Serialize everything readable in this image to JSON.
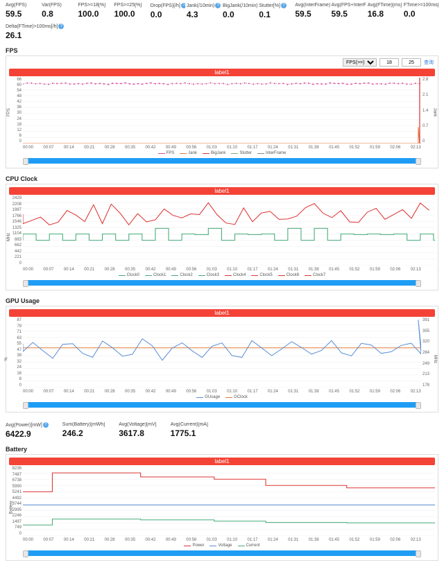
{
  "metrics_top": [
    {
      "label": "Avg(FPS)",
      "value": "59.5",
      "help": false
    },
    {
      "label": "Var(FPS)",
      "value": "0.8",
      "help": false
    },
    {
      "label": "FPS>=18[%]",
      "value": "100.0",
      "help": false
    },
    {
      "label": "FPS>=25[%]",
      "value": "100.0",
      "help": false
    },
    {
      "label": "Drop(FPS)[/h]",
      "value": "0.0",
      "help": true
    },
    {
      "label": "Jank(/10min)",
      "value": "4.3",
      "help": true
    },
    {
      "label": "BigJank(/10min)",
      "value": "0.0",
      "help": true
    },
    {
      "label": "Stutter[%]",
      "value": "0.1",
      "help": true
    },
    {
      "label": "Avg(InterFrame)",
      "value": "59.5",
      "help": false
    },
    {
      "label": "Avg(FPS+InterFrame)",
      "value": "59.5",
      "help": false
    },
    {
      "label": "Avg(FTime)[ms]",
      "value": "16.8",
      "help": false
    },
    {
      "label": "FTime>=100ms[%]",
      "value": "0.0",
      "help": false
    }
  ],
  "metrics_second": [
    {
      "label": "Delta(FTime)>100ms[/h]",
      "value": "26.1",
      "help": true
    }
  ],
  "metrics_power": [
    {
      "label": "Avg(Power)[mW]",
      "value": "6422.9",
      "help": true
    },
    {
      "label": "Sum(Battery)[mWh]",
      "value": "246.2",
      "help": false
    },
    {
      "label": "Avg(Voltage)[mV]",
      "value": "3617.8",
      "help": false
    },
    {
      "label": "Avg(Current)[mA]",
      "value": "1775.1",
      "help": false
    }
  ],
  "label_bar_text": "label1",
  "x_ticks": [
    "00:00",
    "00:07",
    "00:14",
    "00:21",
    "00:28",
    "00:35",
    "00:42",
    "00:49",
    "00:56",
    "01:03",
    "01:10",
    "01:17",
    "01:24",
    "01:31",
    "01:38",
    "01:45",
    "01:52",
    "01:59",
    "02:06",
    "02:13"
  ],
  "fps": {
    "title": "FPS",
    "selector": "FPS(>=)",
    "in1": "18",
    "in2": "25",
    "link": "查询",
    "ylim": [
      0,
      66
    ],
    "yticks": [
      "66",
      "60",
      "54",
      "48",
      "42",
      "36",
      "30",
      "24",
      "18",
      "12",
      "6",
      "0"
    ],
    "ylim_r": [
      0,
      2.8
    ],
    "yticks_r": [
      "2.8",
      "2.1",
      "1.4",
      "0.7",
      "0"
    ],
    "yaxis_l_title": "FPS",
    "yaxis_r_title": "Jank",
    "legend": [
      {
        "name": "FPS",
        "color": "#d84c9e"
      },
      {
        "name": "Jank",
        "color": "#e07a3c"
      },
      {
        "name": "BigJank",
        "color": "#d33"
      },
      {
        "name": "Stutter",
        "color": "#7a7"
      },
      {
        "name": "InterFrame",
        "color": "#888"
      }
    ],
    "series": {
      "FPS": {
        "type": "dotted",
        "color": "#d84c9e",
        "y": 60,
        "dx": 6
      },
      "Jank": {
        "type": "spike",
        "color": "#e07a3c",
        "x": 556,
        "h": 0.7
      },
      "BigJank": {
        "type": "spike",
        "color": "#d33",
        "x": 558,
        "h": 2.8
      }
    }
  },
  "cpu": {
    "title": "CPU Clock",
    "ylim": [
      0,
      2429
    ],
    "yticks": [
      "2429",
      "2208",
      "1987",
      "1766",
      "1546",
      "1325",
      "1104",
      "883",
      "662",
      "442",
      "221",
      "0"
    ],
    "yaxis_l_title": "MHz",
    "legend": [
      {
        "name": "Clock0",
        "color": "#4a7"
      },
      {
        "name": "Clock1",
        "color": "#4a7"
      },
      {
        "name": "Clock2",
        "color": "#4a7"
      },
      {
        "name": "Clock3",
        "color": "#4a7"
      },
      {
        "name": "Clock4",
        "color": "#d33"
      },
      {
        "name": "Clock5",
        "color": "#d33"
      },
      {
        "name": "Clock6",
        "color": "#d33"
      },
      {
        "name": "Clock7",
        "color": "#d33"
      }
    ],
    "lowband": {
      "color": "#4a7",
      "levels": [
        883,
        1104
      ],
      "period": 18
    },
    "highband": {
      "color": "#d33",
      "min": 1400,
      "max": 2208,
      "period": 12
    }
  },
  "gpu": {
    "title": "GPU Usage",
    "ylim": [
      0,
      87
    ],
    "yticks": [
      "87",
      "79",
      "71",
      "63",
      "55",
      "47",
      "39",
      "32",
      "24",
      "16",
      "8",
      "0"
    ],
    "ylim_r": [
      178,
      391
    ],
    "yticks_r": [
      "391",
      "355",
      "320",
      "284",
      "249",
      "213",
      "178"
    ],
    "yaxis_l_title": "%",
    "yaxis_r_title": "MHz",
    "legend": [
      {
        "name": "GUsage",
        "color": "#5a8fd6"
      },
      {
        "name": "GClock",
        "color": "#e07a3c"
      }
    ],
    "gusage": {
      "color": "#5a8fd6",
      "base": 48,
      "amp": 10,
      "period": 14,
      "spike_x": 556,
      "spike_y": 85
    },
    "gclock": {
      "color": "#e07a3c",
      "y": 300
    }
  },
  "battery": {
    "title": "Battery",
    "ylim": [
      0,
      8236
    ],
    "yticks": [
      "8236",
      "7487",
      "6738",
      "5990",
      "5241",
      "4492",
      "3744",
      "2995",
      "2246",
      "1497",
      "749",
      "0"
    ],
    "yaxis_l_title": "Battery",
    "legend": [
      {
        "name": "Power",
        "color": "#d33"
      },
      {
        "name": "Voltage",
        "color": "#5a8fd6"
      },
      {
        "name": "Current",
        "color": "#4a7"
      }
    ],
    "power": {
      "color": "#d33",
      "steps": [
        [
          0,
          5241
        ],
        [
          40,
          7487
        ],
        [
          160,
          7000
        ],
        [
          260,
          6738
        ],
        [
          330,
          5990
        ],
        [
          400,
          5990
        ],
        [
          440,
          5700
        ],
        [
          560,
          5700
        ]
      ]
    },
    "voltage": {
      "color": "#5a8fd6",
      "y": 3680
    },
    "current": {
      "color": "#4a7",
      "steps": [
        [
          0,
          1300
        ],
        [
          40,
          2000
        ],
        [
          160,
          1900
        ],
        [
          260,
          1750
        ],
        [
          330,
          1600
        ],
        [
          400,
          1600
        ],
        [
          440,
          1550
        ],
        [
          560,
          1550
        ]
      ]
    }
  },
  "colors": {
    "label_bar": "#f44336",
    "slider": "#1f9df5",
    "grid": "#eee",
    "border": "#ddd"
  }
}
